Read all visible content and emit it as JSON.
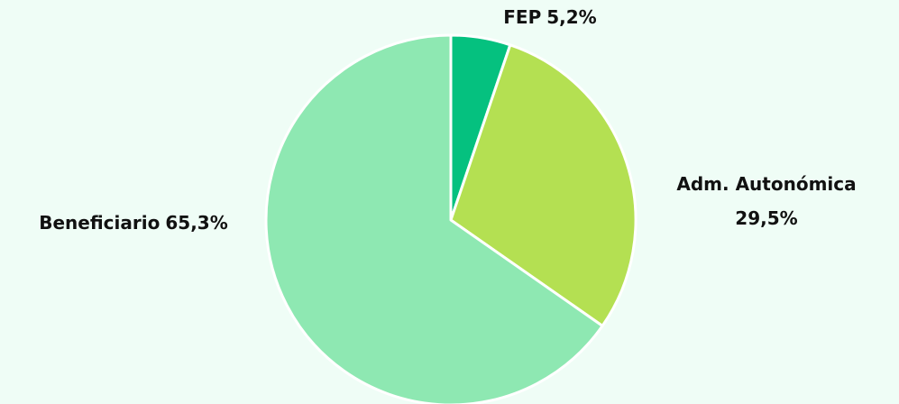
{
  "chart_data": {
    "type": "pie",
    "categories": [
      "FEP",
      "Adm. Autonómica",
      "Beneficiario"
    ],
    "values": [
      5.2,
      29.5,
      65.3
    ],
    "value_labels": [
      "5,2%",
      "29,5%",
      "65,3%"
    ],
    "colors": [
      "#05c17f",
      "#b4e052",
      "#8ee8b2"
    ]
  }
}
